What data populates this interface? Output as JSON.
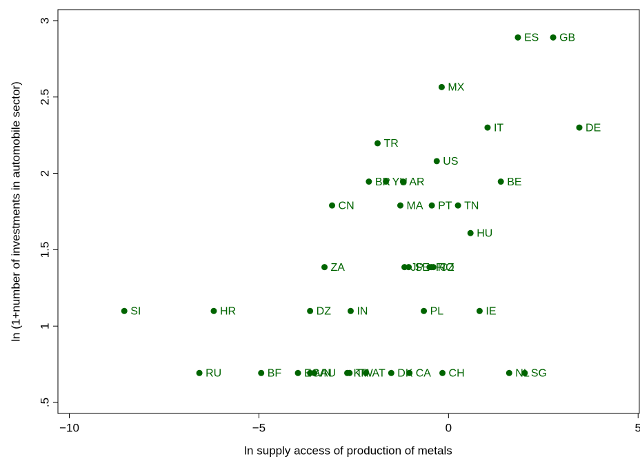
{
  "chart_data": {
    "type": "scatter",
    "x_label": "ln supply access of production of metals",
    "y_label": "ln (1+number of investments in automobile sector)",
    "color": "#006400",
    "xlim": [
      -10.3,
      5.05
    ],
    "ylim": [
      0.428,
      3.072
    ],
    "xticks": [
      {
        "value": -10,
        "label": "−10"
      },
      {
        "value": -5,
        "label": "−5"
      },
      0,
      5
    ],
    "yticks": [
      {
        "value": 0.5,
        "label": ".5"
      },
      1,
      1.5,
      2,
      2.5,
      3
    ],
    "point_labels": [
      "ES",
      "GB",
      "MX",
      "IT",
      "DE",
      "TR",
      "US",
      "BR",
      "YU",
      "AR",
      "BE",
      "CN",
      "MA",
      "PT",
      "TN",
      "HU",
      "ZA",
      "JP",
      "SE",
      "FI",
      "RO",
      "CZ",
      "SI",
      "HR",
      "DZ",
      "IN",
      "PL",
      "IE",
      "RU",
      "BF",
      "EG",
      "VN",
      "AU",
      "KR",
      "TW",
      "AT",
      "DK",
      "CA",
      "CH",
      "NL",
      "SG"
    ],
    "x": [
      1.83,
      2.76,
      -0.18,
      1.03,
      3.45,
      -1.87,
      -0.31,
      -2.1,
      -1.65,
      -1.2,
      1.38,
      -3.07,
      -1.27,
      -0.44,
      0.25,
      0.58,
      -3.27,
      -1.16,
      -1.05,
      -0.5,
      -0.45,
      -0.4,
      -8.55,
      -6.19,
      -3.65,
      -2.58,
      -0.65,
      0.82,
      -6.57,
      -4.94,
      -3.97,
      -3.65,
      -3.54,
      -2.67,
      -2.61,
      -2.18,
      -1.51,
      -1.03,
      -0.16,
      1.6,
      2.01
    ],
    "values": [
      2.89,
      2.89,
      2.565,
      2.3,
      2.3,
      2.197,
      2.08,
      1.946,
      1.946,
      1.946,
      1.946,
      1.79,
      1.79,
      1.79,
      1.79,
      1.609,
      1.386,
      1.386,
      1.386,
      1.386,
      1.386,
      1.386,
      1.099,
      1.099,
      1.099,
      1.099,
      1.099,
      1.099,
      0.693,
      0.693,
      0.693,
      0.693,
      0.693,
      0.693,
      0.693,
      0.693,
      0.693,
      0.693,
      0.693,
      0.693,
      0.693
    ]
  }
}
